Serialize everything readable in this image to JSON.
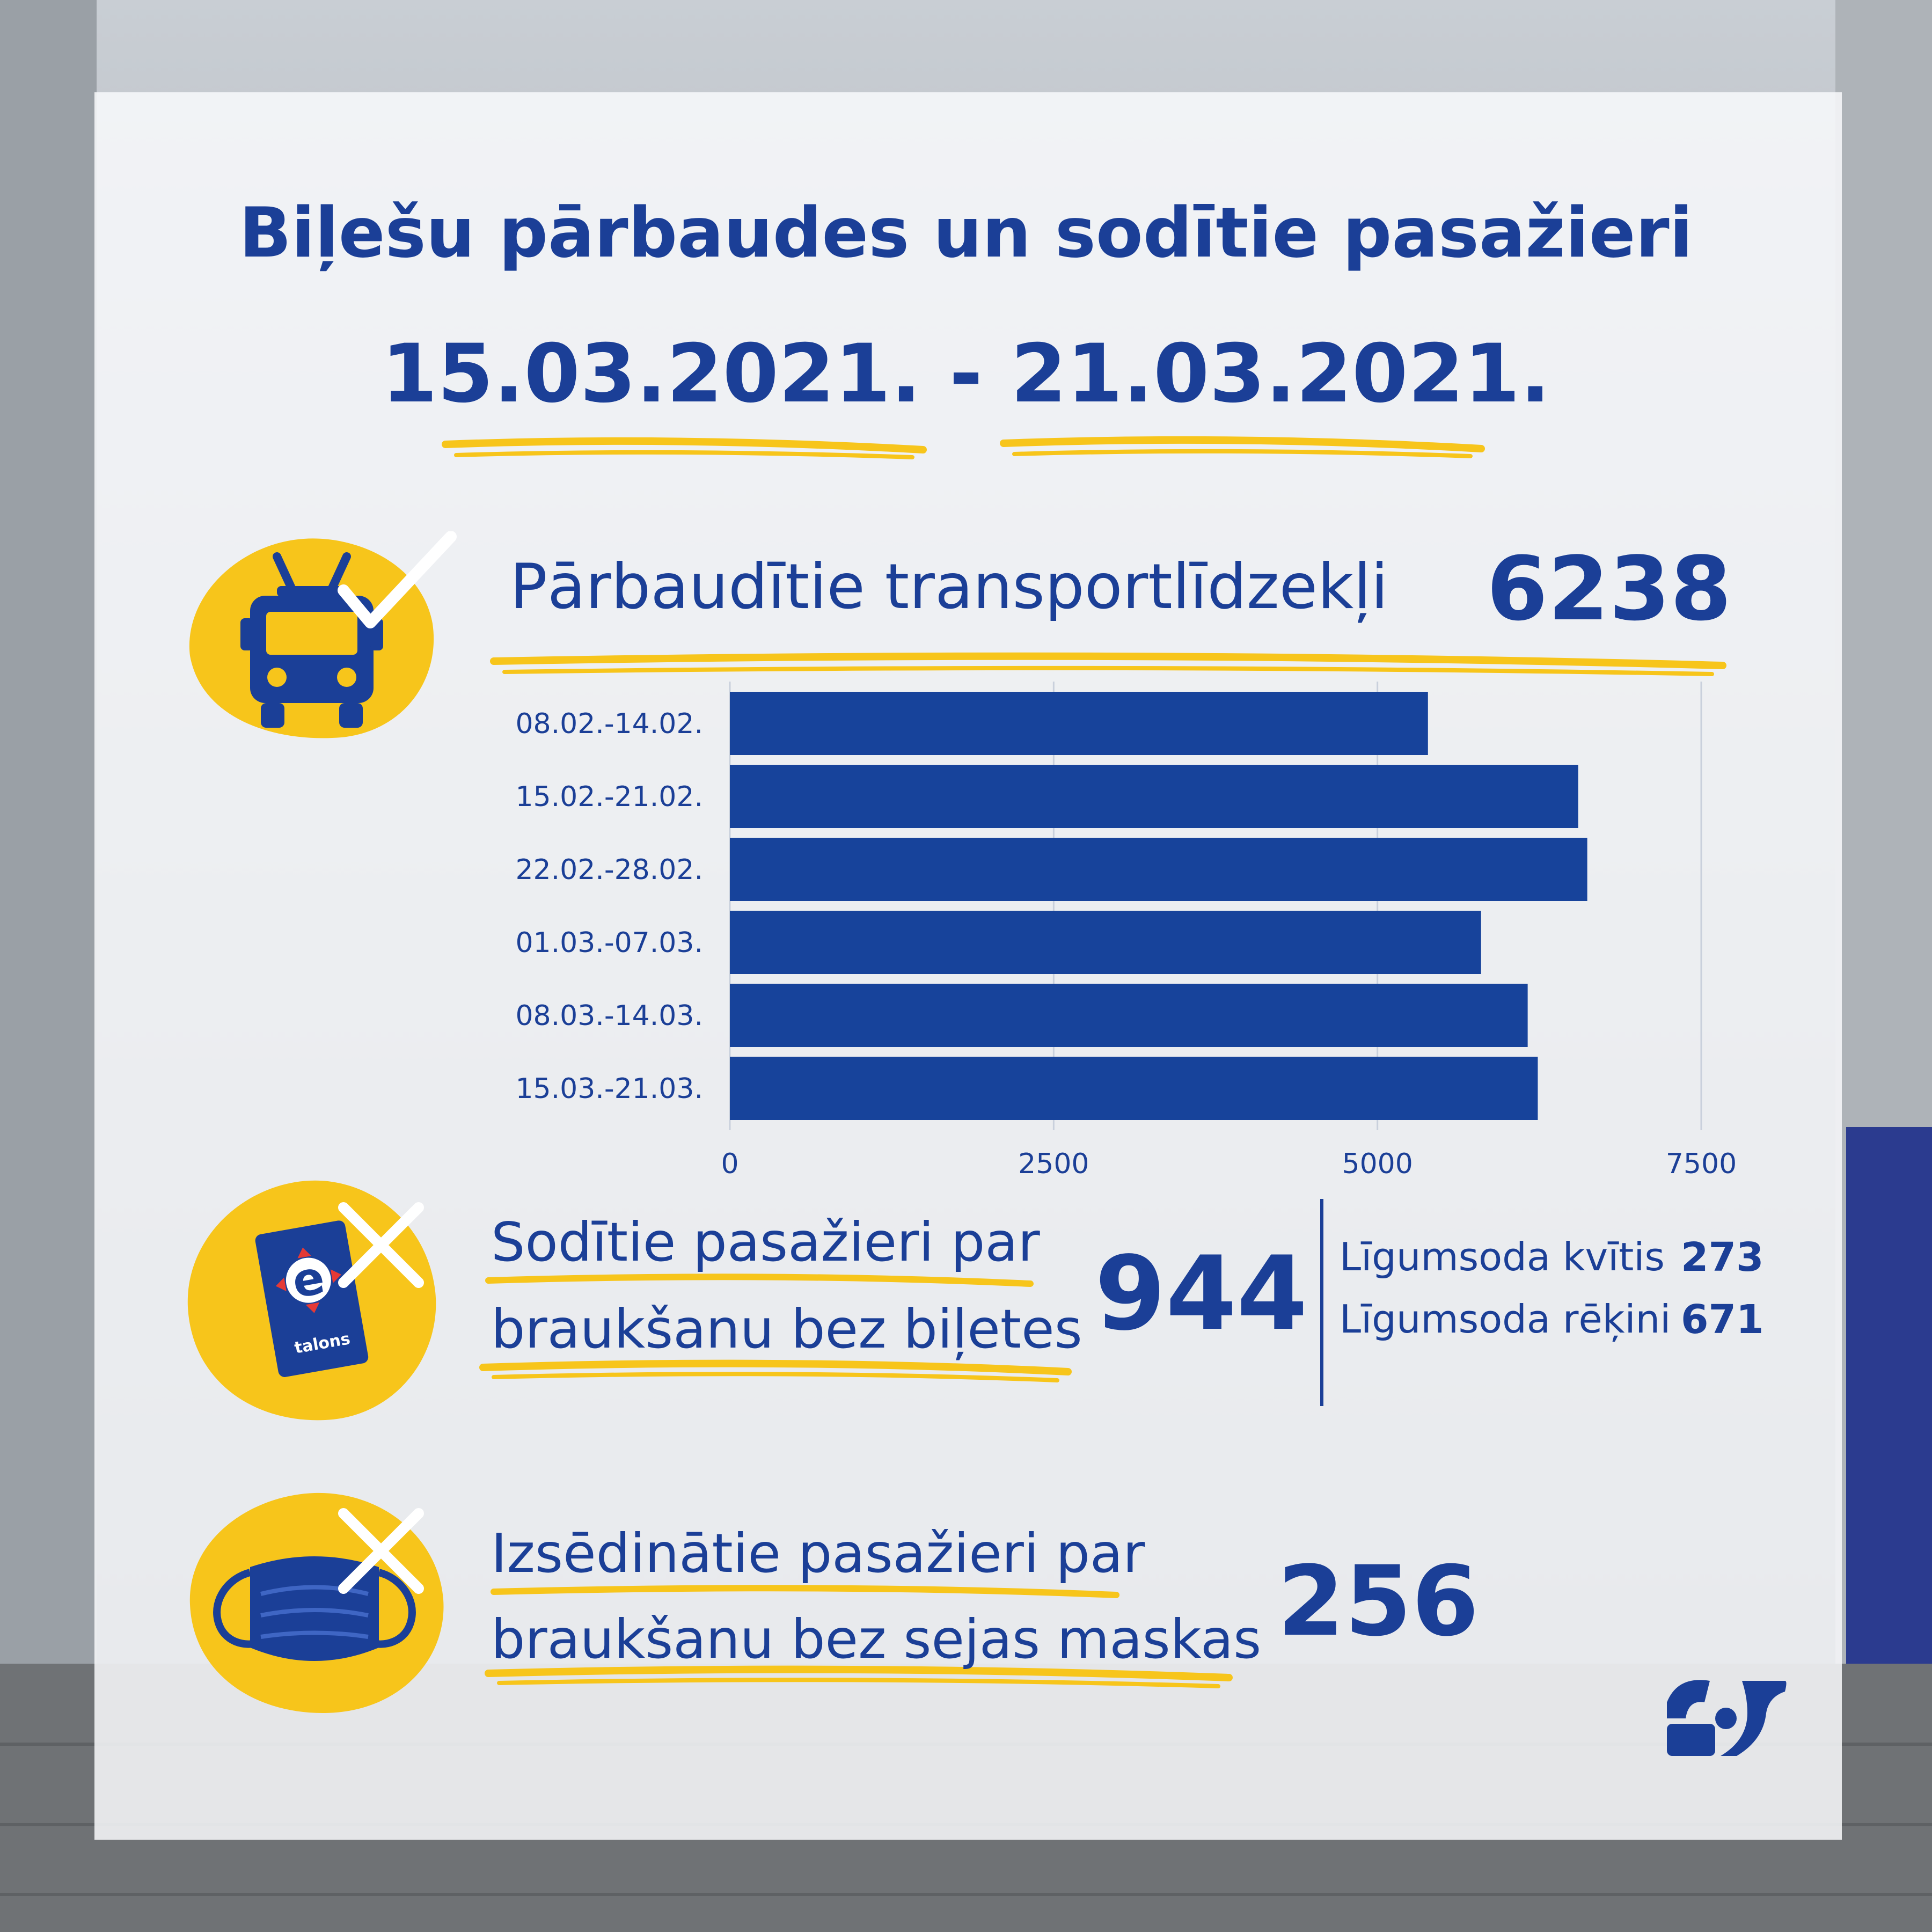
{
  "header": {
    "title": "Biļešu pārbaudes un sodītie pasažieri",
    "date_range": "15.03.2021. - 21.03.2021."
  },
  "vehicles": {
    "label": "Pārbaudītie transportlīdzekļi",
    "value": "6238"
  },
  "fined": {
    "label_line1": "Sodītie pasažieri par",
    "label_line2": "braukšanu bez biļetes",
    "value": "944",
    "breakdown": [
      {
        "label": "Līgumsoda kvītis",
        "value": "273"
      },
      {
        "label": "Līgumsoda rēķini",
        "value": "671"
      }
    ],
    "card_text": "talons"
  },
  "masks": {
    "label_line1": "Izsēdinātie pasažieri par",
    "label_line2": "braukšanu bez sejas maskas",
    "value": "256"
  },
  "colors": {
    "blue": "#1b3f97",
    "bar": "#17439b",
    "yellow": "#f7c51b"
  },
  "icons": [
    "trolleybus-icon",
    "checkmark-icon",
    "etalons-card-icon",
    "face-mask-icon",
    "cross-icon",
    "rigas-satiksme-logo"
  ],
  "chart_data": {
    "type": "bar",
    "orientation": "horizontal",
    "categories": [
      "08.02.-14.02.",
      "15.02.-21.02.",
      "22.02.-28.02.",
      "01.03.-07.03.",
      "08.03.-14.03.",
      "15.03.-21.03."
    ],
    "values": [
      5390,
      6550,
      6620,
      5800,
      6160,
      6238
    ],
    "xlim": [
      0,
      7500
    ],
    "xticks": [
      0,
      2500,
      5000,
      7500
    ],
    "grid": true,
    "title": "",
    "xlabel": "",
    "ylabel": ""
  }
}
